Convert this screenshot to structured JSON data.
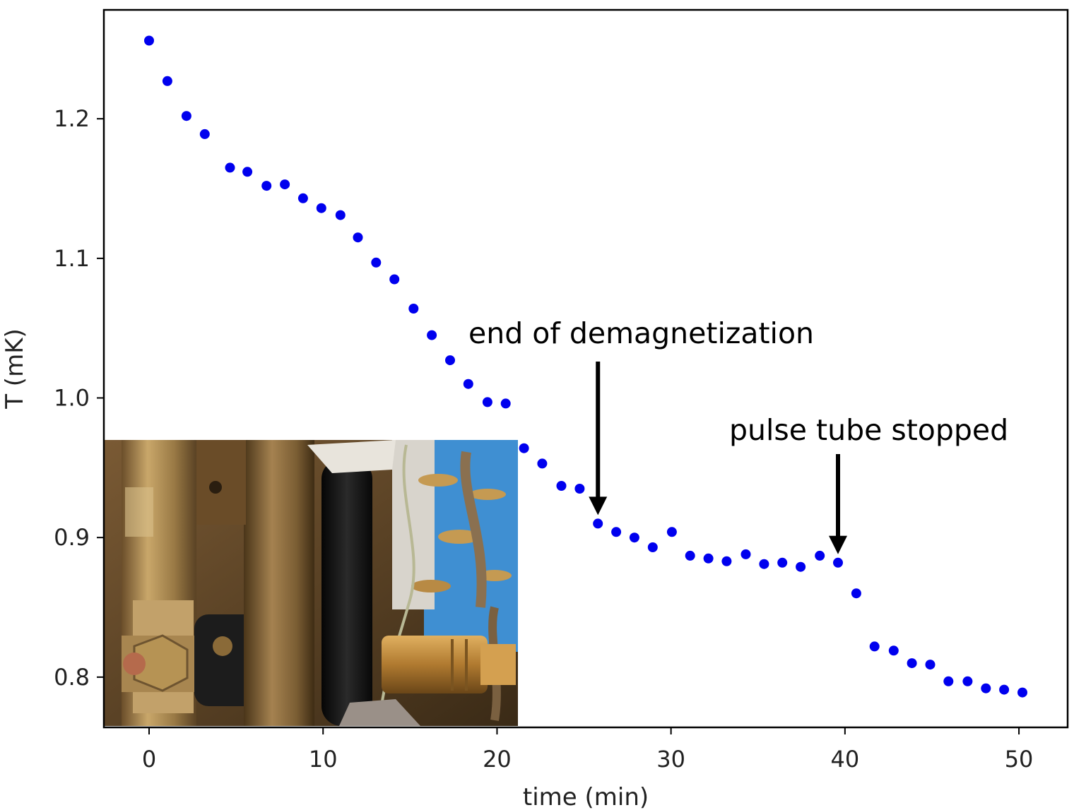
{
  "chart_data": {
    "type": "scatter",
    "title": "",
    "xlabel": "time (min)",
    "ylabel": "T (mK)",
    "xlim": [
      -2.6,
      52.8
    ],
    "ylim": [
      0.764,
      1.278
    ],
    "xticks": [
      0,
      10,
      20,
      30,
      40,
      50
    ],
    "yticks": [
      0.8,
      0.9,
      1.0,
      1.1,
      1.2
    ],
    "ytick_labels": [
      "0.8",
      "0.9",
      "1.0",
      "1.1",
      "1.2"
    ],
    "grid": false,
    "marker_color": "#0000ee",
    "x": [
      0,
      1.05,
      2.15,
      3.2,
      4.65,
      5.65,
      6.75,
      7.8,
      8.85,
      9.9,
      11.0,
      12.0,
      13.05,
      14.1,
      15.2,
      16.25,
      17.3,
      18.35,
      19.45,
      20.5,
      21.55,
      22.6,
      23.7,
      24.75,
      25.8,
      26.85,
      27.9,
      28.95,
      30.05,
      31.1,
      32.15,
      33.2,
      34.3,
      35.35,
      36.4,
      37.45,
      38.55,
      39.6,
      40.65,
      41.7,
      42.8,
      43.85,
      44.9,
      45.95,
      47.05,
      48.1,
      49.15,
      50.2
    ],
    "y": [
      1.256,
      1.227,
      1.202,
      1.189,
      1.165,
      1.162,
      1.152,
      1.153,
      1.143,
      1.136,
      1.131,
      1.115,
      1.097,
      1.085,
      1.064,
      1.045,
      1.027,
      1.01,
      0.997,
      0.996,
      0.964,
      0.953,
      0.937,
      0.935,
      0.91,
      0.904,
      0.9,
      0.893,
      0.904,
      0.887,
      0.885,
      0.883,
      0.888,
      0.881,
      0.882,
      0.879,
      0.887,
      0.882,
      0.86,
      0.822,
      0.819,
      0.81,
      0.809,
      0.797,
      0.797,
      0.792,
      0.791,
      0.789
    ],
    "annotations": [
      {
        "text": "end of demagnetization",
        "x": 25.8,
        "y": 0.91
      },
      {
        "text": "pulse tube stopped",
        "x": 39.6,
        "y": 0.882
      }
    ]
  },
  "inset": {
    "kind": "photo",
    "colors": {
      "brass_light": "#c9a76a",
      "brass_mid": "#9a7a45",
      "brass_dark": "#5a4224",
      "black_rod": "#111111",
      "blue_panel": "#3f8fd2",
      "copper": "#b56a4c",
      "gold_connector": "#c28a3a"
    }
  }
}
